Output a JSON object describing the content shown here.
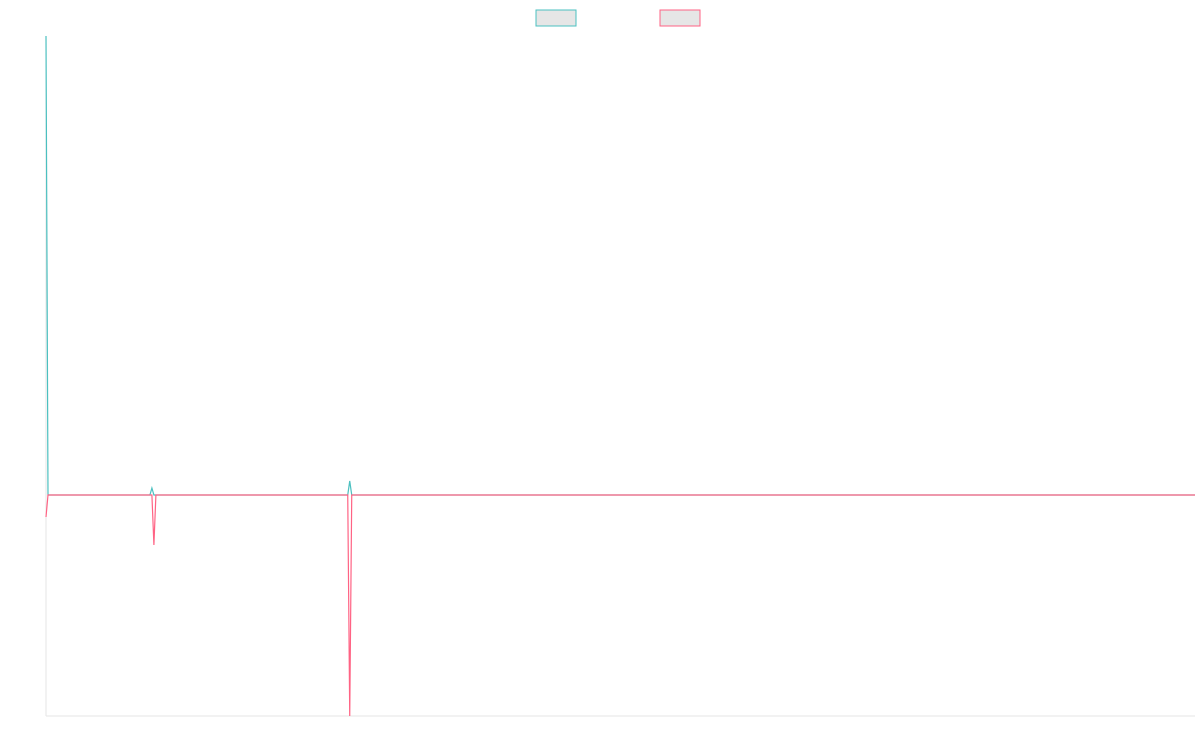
{
  "chart_data": {
    "type": "line",
    "x": [
      0,
      1,
      52,
      53,
      54,
      55,
      151,
      152,
      153,
      575
    ],
    "xlim": [
      0,
      575
    ],
    "ylim": [
      -221,
      459
    ],
    "legend": "top",
    "series": [
      {
        "color": "#4bc0c0",
        "values": [
          459,
          0,
          0,
          7,
          0,
          0,
          0,
          14,
          0,
          0
        ]
      },
      {
        "color": "#ff6384",
        "values": [
          -22,
          0,
          0,
          0,
          -50,
          0,
          0,
          -221,
          0,
          0
        ]
      }
    ]
  }
}
